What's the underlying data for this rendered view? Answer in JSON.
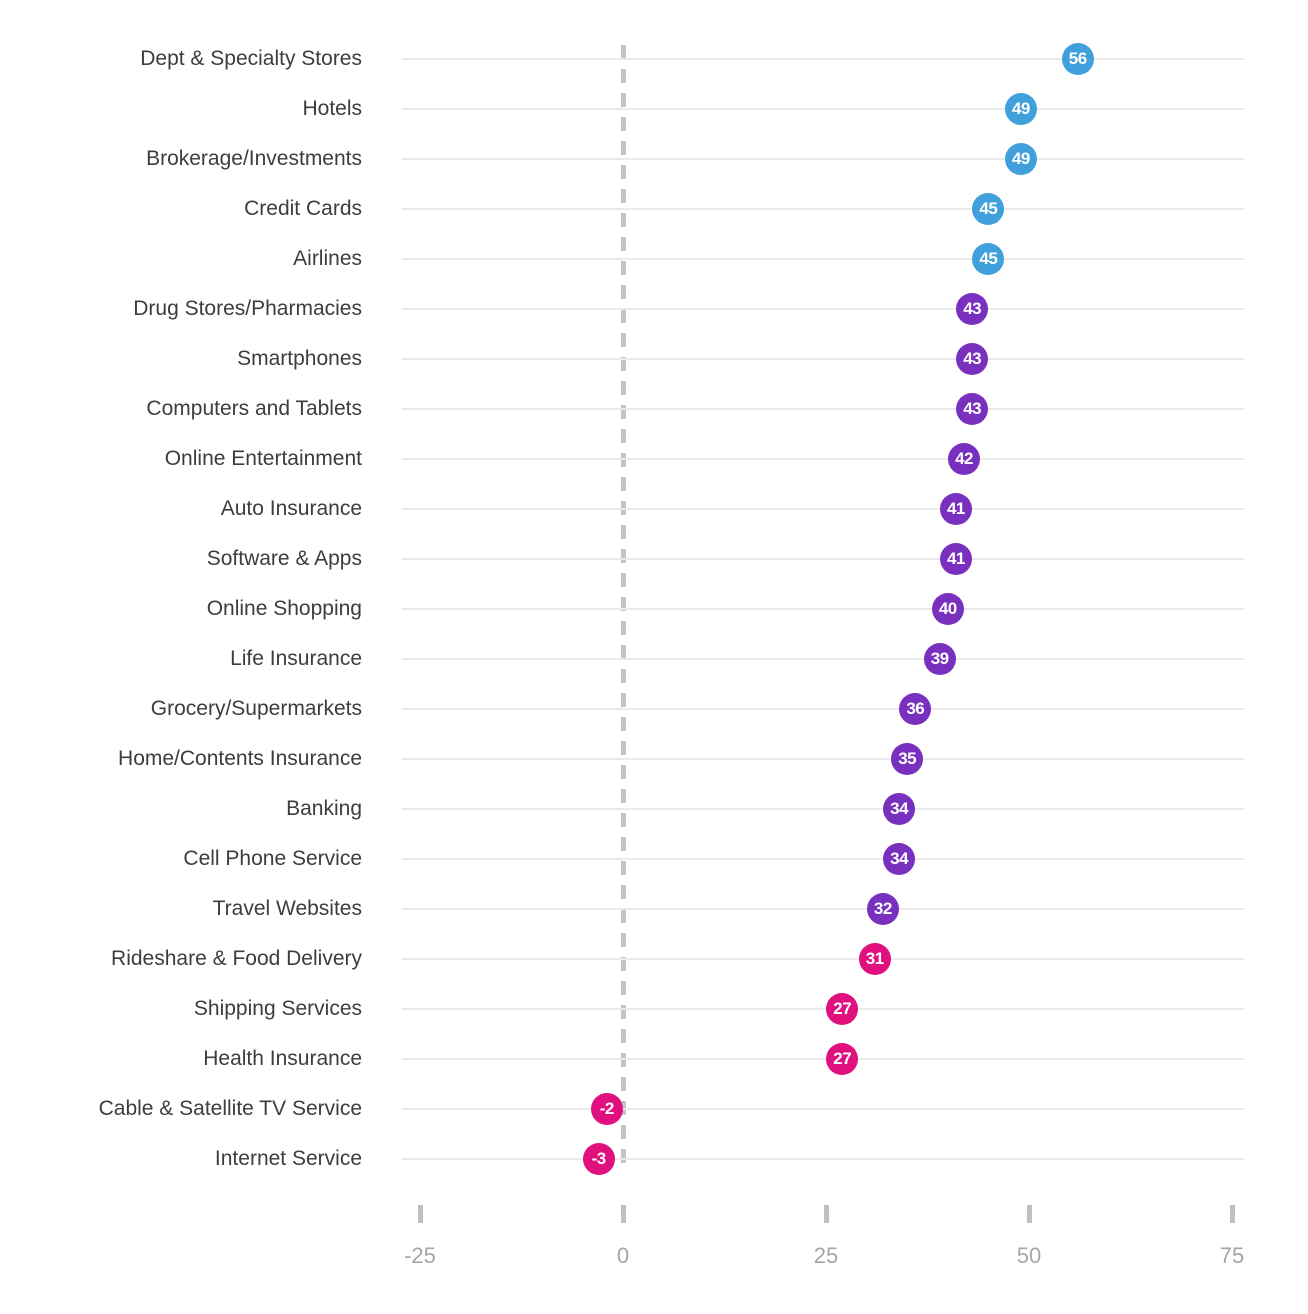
{
  "chart_data": {
    "type": "scatter",
    "variant": "horizontal-dot-plot",
    "title": "",
    "xlabel": "",
    "ylabel": "",
    "x_ticks": [
      -25,
      0,
      25,
      50,
      75
    ],
    "x_range": [
      -25,
      75
    ],
    "zero_line_at": 0,
    "grid": "horizontal-row-lines",
    "legend": "none",
    "data_labels": "inside-dot",
    "categories": [
      "Dept & Specialty Stores",
      "Hotels",
      "Brokerage/Investments",
      "Credit Cards",
      "Airlines",
      "Drug Stores/Pharmacies",
      "Smartphones",
      "Computers and Tablets",
      "Online Entertainment",
      "Auto Insurance",
      "Software & Apps",
      "Online Shopping",
      "Life Insurance",
      "Grocery/Supermarkets",
      "Home/Contents Insurance",
      "Banking",
      "Cell Phone Service",
      "Travel Websites",
      "Rideshare & Food Delivery",
      "Shipping Services",
      "Health Insurance",
      "Cable & Satellite TV Service",
      "Internet Service"
    ],
    "values": [
      56,
      49,
      49,
      45,
      45,
      43,
      43,
      43,
      42,
      41,
      41,
      40,
      39,
      36,
      35,
      34,
      34,
      32,
      31,
      27,
      27,
      -2,
      -3
    ],
    "point_color_groups": [
      "blue",
      "blue",
      "blue",
      "blue",
      "blue",
      "purple",
      "purple",
      "purple",
      "purple",
      "purple",
      "purple",
      "purple",
      "purple",
      "purple",
      "purple",
      "purple",
      "purple",
      "purple",
      "magenta",
      "magenta",
      "magenta",
      "magenta",
      "magenta"
    ],
    "palette": {
      "blue": "#3fa0db",
      "purple": "#7a30be",
      "magenta": "#e0107f"
    },
    "style_colors": {
      "grid_line": "#eaeaea",
      "zero_dashed_line": "#c4c4c4",
      "axis_tick": "#c0c0c0",
      "axis_tick_label": "#a6a6a6",
      "category_label": "#3d3d3d",
      "dot_value_text": "#ffffff",
      "background": "#ffffff"
    }
  }
}
